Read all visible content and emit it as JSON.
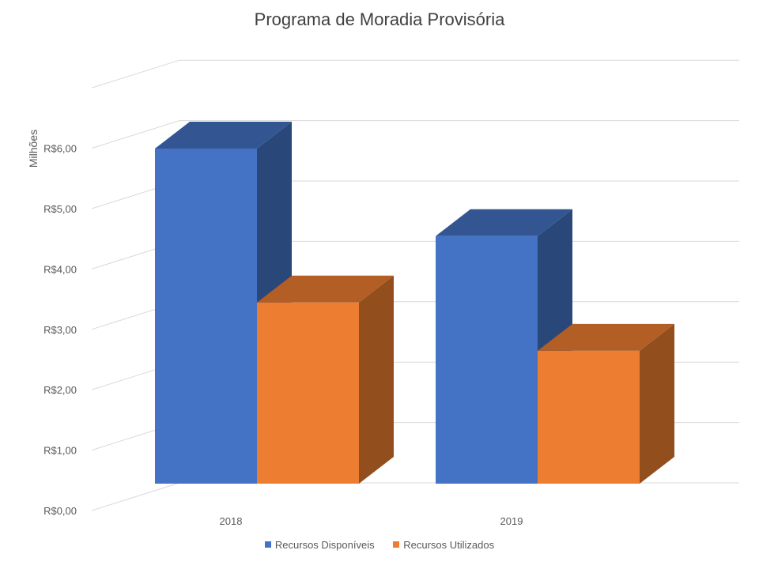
{
  "chart_data": {
    "type": "bar",
    "title": "Programa de Moradia Provisória",
    "xlabel": "",
    "ylabel": "Milhões",
    "categories": [
      "2018",
      "2019"
    ],
    "series": [
      {
        "name": "Recursos Disponíveis",
        "values": [
          5.55,
          4.1
        ],
        "color": "#4472C4"
      },
      {
        "name": "Recursos Utilizados",
        "values": [
          3.0,
          2.2
        ],
        "color": "#ED7D31"
      }
    ],
    "ylim": [
      0,
      6
    ],
    "yticks": [
      {
        "value": 0,
        "label": "R$0,00"
      },
      {
        "value": 1,
        "label": "R$1,00"
      },
      {
        "value": 2,
        "label": "R$2,00"
      },
      {
        "value": 3,
        "label": "R$3,00"
      },
      {
        "value": 4,
        "label": "R$4,00"
      },
      {
        "value": 5,
        "label": "R$5,00"
      },
      {
        "value": 6,
        "label": "R$6,00"
      }
    ],
    "grid": true,
    "legend_position": "bottom",
    "style": "3d-column"
  }
}
